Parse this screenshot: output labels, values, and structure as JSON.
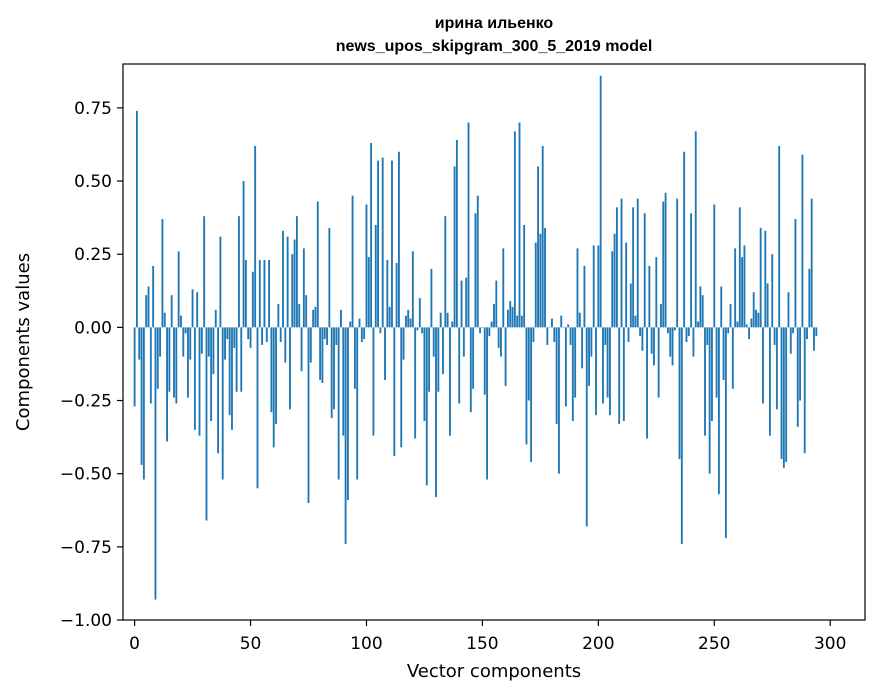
{
  "chart_data": {
    "type": "bar",
    "title": "ирина ильенко",
    "subtitle": "news_upos_skipgram_300_5_2019 model",
    "xlabel": "Vector components",
    "ylabel": "Components values",
    "xlim": [
      -5,
      315
    ],
    "ylim": [
      -1.0,
      0.9
    ],
    "xticks": [
      0,
      50,
      100,
      150,
      200,
      250,
      300
    ],
    "xtick_labels": [
      "0",
      "50",
      "100",
      "150",
      "200",
      "250",
      "300"
    ],
    "yticks": [
      0.75,
      0.5,
      0.25,
      0.0,
      -0.25,
      -0.5,
      -0.75,
      -1.0
    ],
    "ytick_labels": [
      "0.75",
      "0.50",
      "0.25",
      "0.00",
      "−0.25",
      "−0.50",
      "−0.75",
      "−1.00"
    ],
    "grid": false,
    "bar_color": "#1f77b4",
    "x_start": 0,
    "values": [
      -0.27,
      0.74,
      -0.11,
      -0.47,
      -0.52,
      0.11,
      0.14,
      -0.26,
      0.21,
      -0.93,
      -0.21,
      -0.1,
      0.37,
      0.05,
      -0.39,
      -0.22,
      0.11,
      -0.24,
      -0.26,
      0.26,
      0.04,
      -0.1,
      -0.02,
      -0.24,
      -0.11,
      0.13,
      -0.35,
      0.12,
      -0.37,
      -0.09,
      0.38,
      -0.66,
      -0.1,
      -0.32,
      -0.16,
      0.06,
      -0.43,
      0.31,
      -0.52,
      -0.11,
      -0.04,
      -0.3,
      -0.35,
      -0.07,
      -0.22,
      0.38,
      -0.22,
      0.5,
      0.23,
      -0.04,
      -0.07,
      0.19,
      0.62,
      -0.55,
      0.23,
      -0.06,
      0.23,
      -0.05,
      0.23,
      -0.29,
      -0.41,
      -0.33,
      0.08,
      -0.05,
      0.33,
      -0.12,
      0.31,
      -0.28,
      0.25,
      0.3,
      0.38,
      0.08,
      -0.15,
      0.27,
      0.11,
      -0.6,
      -0.12,
      0.06,
      0.07,
      0.43,
      -0.18,
      -0.19,
      -0.04,
      -0.06,
      0.34,
      -0.31,
      -0.28,
      -0.06,
      -0.52,
      0.06,
      -0.37,
      -0.74,
      -0.59,
      0.02,
      0.45,
      -0.21,
      -0.52,
      0.03,
      -0.05,
      -0.04,
      0.42,
      0.24,
      0.63,
      -0.37,
      0.35,
      0.57,
      -0.02,
      0.58,
      -0.18,
      0.23,
      0.07,
      0.57,
      -0.44,
      0.22,
      0.6,
      -0.41,
      -0.11,
      0.04,
      0.06,
      0.03,
      0.26,
      -0.38,
      -0.01,
      0.1,
      -0.02,
      -0.32,
      -0.54,
      -0.22,
      0.2,
      -0.1,
      -0.58,
      -0.22,
      0.05,
      -0.16,
      0.38,
      0.05,
      -0.37,
      0.02,
      0.55,
      0.64,
      -0.26,
      0.16,
      -0.1,
      0.17,
      0.7,
      -0.29,
      -0.21,
      0.39,
      0.45,
      -0.02,
      0.0,
      -0.23,
      -0.52,
      -0.03,
      0.02,
      0.08,
      0.16,
      -0.07,
      -0.1,
      0.27,
      -0.2,
      0.06,
      0.09,
      0.07,
      0.67,
      0.04,
      0.7,
      0.04,
      0.35,
      -0.4,
      -0.25,
      -0.46,
      -0.05,
      0.29,
      0.55,
      0.32,
      0.62,
      0.34,
      -0.06,
      0.0,
      0.03,
      -0.05,
      -0.33,
      -0.5,
      0.04,
      0.0,
      -0.27,
      0.01,
      -0.06,
      -0.32,
      -0.24,
      0.27,
      0.05,
      -0.14,
      0.21,
      -0.68,
      -0.2,
      -0.1,
      0.28,
      -0.3,
      0.28,
      0.86,
      -0.26,
      -0.06,
      -0.24,
      -0.3,
      0.26,
      0.32,
      0.41,
      -0.33,
      0.44,
      -0.32,
      0.29,
      -0.05,
      0.15,
      0.41,
      0.04,
      0.44,
      -0.03,
      -0.08,
      0.39,
      -0.38,
      0.21,
      -0.09,
      -0.13,
      0.24,
      -0.24,
      0.08,
      0.43,
      0.46,
      -0.02,
      -0.1,
      -0.13,
      -0.01,
      0.44,
      -0.45,
      -0.74,
      0.6,
      -0.05,
      -0.03,
      0.39,
      -0.1,
      0.67,
      0.02,
      0.14,
      0.11,
      -0.37,
      -0.06,
      -0.5,
      -0.32,
      0.42,
      -0.24,
      -0.57,
      0.14,
      -0.18,
      -0.72,
      -0.02,
      0.08,
      -0.21,
      0.27,
      0.02,
      0.41,
      0.24,
      0.28,
      0.01,
      -0.04,
      0.03,
      0.12,
      0.06,
      0.05,
      0.34,
      -0.26,
      0.33,
      0.15,
      -0.37,
      0.25,
      -0.06,
      -0.28,
      0.62,
      -0.45,
      -0.48,
      -0.46,
      0.12,
      -0.09,
      -0.02,
      0.37,
      -0.34,
      -0.25,
      0.59,
      -0.43,
      -0.04,
      0.2,
      0.44,
      -0.08,
      -0.03
    ]
  }
}
